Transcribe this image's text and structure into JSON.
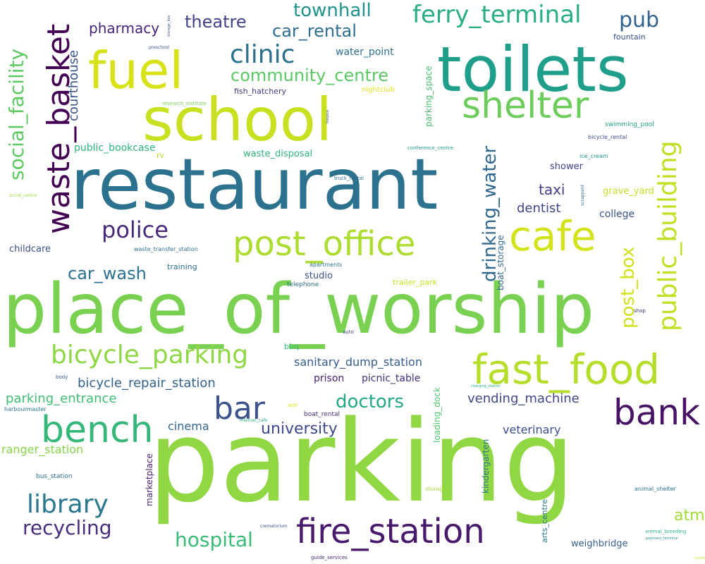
{
  "cloud": {
    "words": [
      {
        "text": "parking",
        "color": "#90d743"
      },
      {
        "text": "place_of_worship",
        "color": "#7ad151"
      },
      {
        "text": "restaurant",
        "color": "#2c728e"
      },
      {
        "text": "toilets",
        "color": "#1f9e89"
      },
      {
        "text": "school",
        "color": "#c8e020"
      },
      {
        "text": "fuel",
        "color": "#d8e219"
      },
      {
        "text": "fast_food",
        "color": "#b5de2b"
      },
      {
        "text": "bank",
        "color": "#471365"
      },
      {
        "text": "bench",
        "color": "#35b779"
      },
      {
        "text": "fire_station",
        "color": "#481a6c"
      },
      {
        "text": "post_office",
        "color": "#addc30"
      },
      {
        "text": "cafe",
        "color": "#d2e21b"
      },
      {
        "text": "shelter",
        "color": "#6ccd5a"
      },
      {
        "text": "waste_basket",
        "color": "#440154"
      },
      {
        "text": "bar",
        "color": "#3b528b"
      },
      {
        "text": "library",
        "color": "#2a788e"
      },
      {
        "text": "bicycle_parking",
        "color": "#8fd744"
      },
      {
        "text": "public_building",
        "color": "#c2df23"
      },
      {
        "text": "clinic",
        "color": "#2d708e"
      },
      {
        "text": "police",
        "color": "#482878"
      },
      {
        "text": "ferry_terminal",
        "color": "#29af7f"
      },
      {
        "text": "recycling",
        "color": "#472d7b"
      },
      {
        "text": "hospital",
        "color": "#3bbb75"
      },
      {
        "text": "drinking_water",
        "color": "#31688e"
      },
      {
        "text": "social_facility",
        "color": "#5ec962"
      },
      {
        "text": "post_box",
        "color": "#d0e11c"
      },
      {
        "text": "doctors",
        "color": "#22a884"
      },
      {
        "text": "pub",
        "color": "#33638d"
      },
      {
        "text": "townhall",
        "color": "#20928c"
      },
      {
        "text": "car_rental",
        "color": "#2e6e8e"
      },
      {
        "text": "community_centre",
        "color": "#5ac864"
      },
      {
        "text": "car_wash",
        "color": "#2c718e"
      },
      {
        "text": "university",
        "color": "#3e4989"
      },
      {
        "text": "theatre",
        "color": "#414487"
      },
      {
        "text": "pharmacy",
        "color": "#482475"
      },
      {
        "text": "atm",
        "color": "#a2da37"
      },
      {
        "text": "courthouse",
        "color": "#3a548c"
      },
      {
        "text": "taxi",
        "color": "#433e85"
      },
      {
        "text": "dentist",
        "color": "#3f4788"
      },
      {
        "text": "vending_machine",
        "color": "#404688"
      },
      {
        "text": "bicycle_repair_station",
        "color": "#33638d"
      },
      {
        "text": "parking_entrance",
        "color": "#3dbc74"
      },
      {
        "text": "sanitary_dump_station",
        "color": "#365c8d"
      },
      {
        "text": "cinema",
        "color": "#31678e"
      },
      {
        "text": "veterinary",
        "color": "#3d4d8a"
      },
      {
        "text": "ranger_station",
        "color": "#84d44b"
      },
      {
        "text": "water_point",
        "color": "#2d718e"
      },
      {
        "text": "prison",
        "color": "#482173"
      },
      {
        "text": "picnic_table",
        "color": "#46307e"
      },
      {
        "text": "public_bookcase",
        "color": "#2fb47c"
      },
      {
        "text": "waste_disposal",
        "color": "#2fb47c"
      },
      {
        "text": "college",
        "color": "#3b528b"
      },
      {
        "text": "shower",
        "color": "#424086"
      },
      {
        "text": "studio",
        "color": "#3b528b"
      },
      {
        "text": "childcare",
        "color": "#3b518b"
      },
      {
        "text": "weighbridge",
        "color": "#355f8d"
      },
      {
        "text": "grave_yard",
        "color": "#c2df23"
      },
      {
        "text": "kindergarten",
        "color": "#2a788e"
      },
      {
        "text": "marketplace",
        "color": "#482173"
      },
      {
        "text": "parking_space",
        "color": "#4ac16d"
      },
      {
        "text": "loading_dock",
        "color": "#4ec36b"
      },
      {
        "text": "boat_storage",
        "color": "#31688e"
      },
      {
        "text": "arts_centre",
        "color": "#2a788e"
      },
      {
        "text": "fountain",
        "color": "#3b518b"
      },
      {
        "text": "training",
        "color": "#2e6e8e"
      },
      {
        "text": "fish_hatchery",
        "color": "#453781"
      },
      {
        "text": "trailer_park",
        "color": "#c8e020"
      },
      {
        "text": "bbq",
        "color": "#35b779"
      },
      {
        "text": "bus_station",
        "color": "#2c728e"
      },
      {
        "text": "rv",
        "color": "#b5de2b"
      },
      {
        "text": "nightclub",
        "color": "#dde318"
      },
      {
        "text": "swimming_pool",
        "color": "#20a386"
      },
      {
        "text": "telephone",
        "color": "#2c718e"
      },
      {
        "text": "boat_rental",
        "color": "#472c7a"
      },
      {
        "text": "waste_transfer_station",
        "color": "#2d708e"
      },
      {
        "text": "bicycle_rental",
        "color": "#3c4f8a"
      },
      {
        "text": "ice_cream",
        "color": "#21918c"
      },
      {
        "text": "apartments",
        "color": "#2a768e"
      },
      {
        "text": "research_institute",
        "color": "#7ad151"
      },
      {
        "text": "conference_centre",
        "color": "#1fa187"
      },
      {
        "text": "harbourmaster",
        "color": "#2a788e"
      },
      {
        "text": "animal_shelter",
        "color": "#2c728e"
      },
      {
        "text": "storage",
        "color": "#a0da39"
      },
      {
        "text": "truck_rental",
        "color": "#2e6d8e"
      },
      {
        "text": "preschool",
        "color": "#3b528b"
      },
      {
        "text": "shop",
        "color": "#46327e"
      },
      {
        "text": "auto",
        "color": "#3f4889"
      },
      {
        "text": "scrapyard",
        "color": "#31688e"
      },
      {
        "text": "body",
        "color": "#365d8d"
      },
      {
        "text": "internet_cafe",
        "color": "#29af7f"
      },
      {
        "text": "well",
        "color": "#dde318"
      },
      {
        "text": "animal_breeding",
        "color": "#2fb47c"
      },
      {
        "text": "crematorium",
        "color": "#3b528b"
      },
      {
        "text": "guide_services",
        "color": "#482677"
      },
      {
        "text": "charging_station",
        "color": "#2ab07f"
      },
      {
        "text": "payment_terminal",
        "color": "#20928c"
      },
      {
        "text": "social_centre",
        "color": "#9fda3a"
      },
      {
        "text": "storage_box",
        "color": "#3b518b"
      },
      {
        "text": "hospice",
        "color": "#3e4a89"
      },
      {
        "text": "nursing_home",
        "color": "#c2df23"
      }
    ]
  }
}
